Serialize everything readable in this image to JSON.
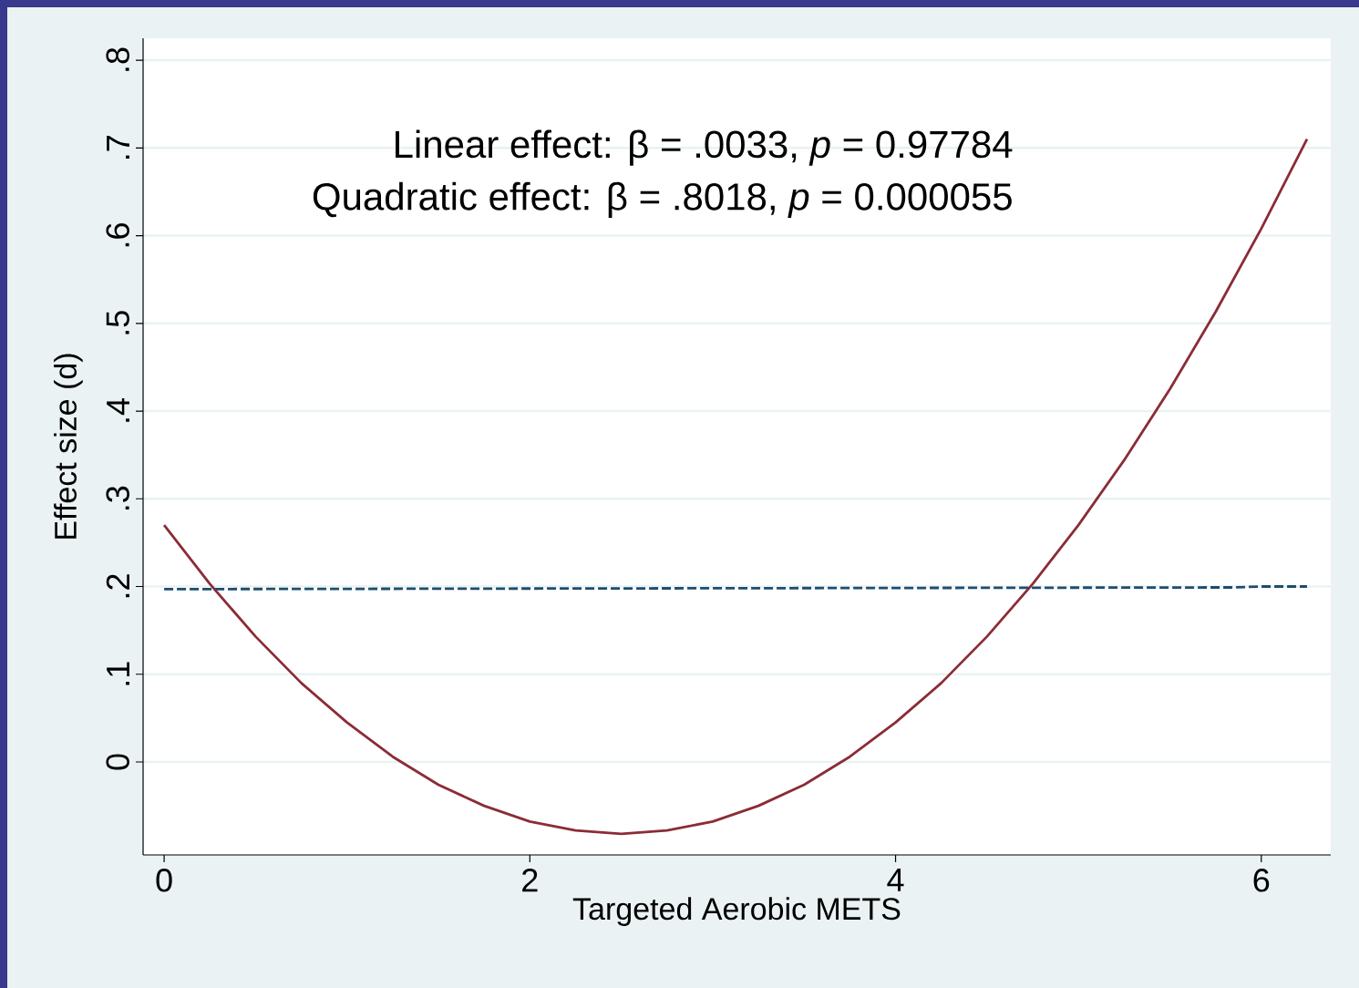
{
  "chart_data": {
    "type": "line",
    "xlabel": "Targeted Aerobic METS",
    "ylabel": "Effect size (d)",
    "annotations": [
      "Linear effect: β = .0033,  *p* = 0.97784",
      "Quadratic effect: β = .8018,  *p* = 0.000055"
    ],
    "x": [
      0,
      0.25,
      0.5,
      0.75,
      1,
      1.25,
      1.5,
      1.75,
      2,
      2.25,
      2.5,
      2.75,
      3,
      3.25,
      3.5,
      3.75,
      4,
      4.25,
      4.5,
      4.75,
      5,
      5.25,
      5.5,
      5.75,
      6,
      6.25
    ],
    "series": [
      {
        "color": "#8b2c36",
        "values": [
          0.27,
          0.203,
          0.143,
          0.09,
          0.045,
          0.006,
          -0.026,
          -0.05,
          -0.068,
          -0.078,
          -0.082,
          -0.078,
          -0.068,
          -0.05,
          -0.026,
          0.006,
          0.045,
          0.09,
          0.143,
          0.203,
          0.27,
          0.344,
          0.425,
          0.513,
          0.608,
          0.71
        ]
      },
      {
        "color": "#1d4d6e",
        "line_style": "dashed",
        "x": [
          0,
          5.85,
          6,
          6.25
        ],
        "values": [
          0.197,
          0.199,
          0.2,
          0.2
        ]
      }
    ],
    "xlim": [
      -0.115,
      6.38
    ],
    "ylim": [
      -0.106,
      0.825
    ],
    "xticks": [
      0,
      2,
      4,
      6
    ],
    "yticks": [
      0,
      {
        "value": 0.1,
        "label": ".1"
      },
      {
        "value": 0.2,
        "label": ".2"
      },
      {
        "value": 0.3,
        "label": ".3"
      },
      {
        "value": 0.4,
        "label": ".4"
      },
      {
        "value": 0.5,
        "label": ".5"
      },
      {
        "value": 0.6,
        "label": ".6"
      },
      {
        "value": 0.7,
        "label": ".7"
      },
      {
        "value": 0.8,
        "label": ".8"
      }
    ],
    "grid": "y",
    "marker": "none",
    "line_style": "solid"
  }
}
